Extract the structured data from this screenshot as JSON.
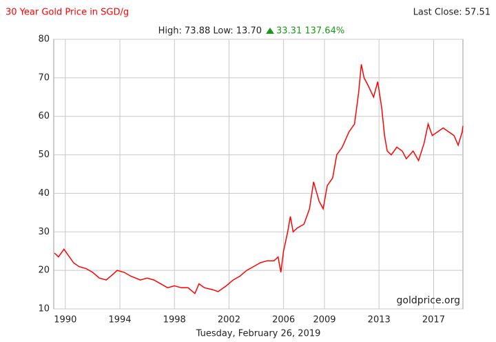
{
  "chart_data": {
    "type": "line",
    "title": "30 Year Gold Price in SGD/g",
    "last_close": "Last Close: 57.51",
    "stats": "High: 73.88 Low: 13.70",
    "change": "33.31 137.64%",
    "watermark": "goldprice.org",
    "xlabel": "Tuesday, February 26, 2019",
    "xlim": [
      1989.15,
      2019.15
    ],
    "xticks": [
      1990,
      1994,
      1998,
      2002,
      2006,
      2009,
      2013,
      2017
    ],
    "ylim": [
      10,
      80
    ],
    "yticks": [
      10,
      20,
      30,
      40,
      50,
      60,
      70,
      80
    ],
    "grid": true,
    "series": [
      {
        "name": "Gold SGD/g",
        "color": "#ff0000",
        "x": [
          1989.2,
          1989.5,
          1989.9,
          1990.2,
          1990.6,
          1991,
          1991.5,
          1992,
          1992.5,
          1993,
          1993.5,
          1993.8,
          1994.3,
          1994.8,
          1995.5,
          1996,
          1996.5,
          1997,
          1997.5,
          1998,
          1998.5,
          1999,
          1999.5,
          1999.8,
          2000.2,
          2000.8,
          2001.2,
          2001.8,
          2002.3,
          2002.8,
          2003.3,
          2003.8,
          2004.3,
          2004.8,
          2005.3,
          2005.6,
          2005.8,
          2006,
          2006.3,
          2006.5,
          2006.7,
          2007,
          2007.5,
          2007.9,
          2008.2,
          2008.6,
          2008.9,
          2009.2,
          2009.6,
          2009.9,
          2010.3,
          2010.8,
          2011.2,
          2011.5,
          2011.7,
          2011.9,
          2012.2,
          2012.6,
          2012.9,
          2013.2,
          2013.4,
          2013.6,
          2013.9,
          2014.3,
          2014.7,
          2015,
          2015.5,
          2015.9,
          2016.3,
          2016.6,
          2016.9,
          2017.3,
          2017.7,
          2018.1,
          2018.5,
          2018.8,
          2019.1,
          2019.15
        ],
        "values": [
          24.5,
          23.5,
          25.5,
          24,
          22,
          21,
          20.5,
          19.5,
          18,
          17.5,
          19,
          20,
          19.5,
          18.5,
          17.5,
          18,
          17.5,
          16.5,
          15.5,
          16,
          15.5,
          15.5,
          14,
          16.5,
          15.5,
          15,
          14.5,
          16,
          17.5,
          18.5,
          20,
          21,
          22,
          22.5,
          22.5,
          23.5,
          19.5,
          25,
          30,
          34,
          30,
          31,
          32,
          36,
          43,
          38,
          36,
          42,
          44,
          50,
          52,
          56,
          58,
          66,
          73.5,
          70,
          68,
          65,
          69,
          62,
          55,
          51,
          50,
          52,
          51,
          49,
          51,
          48.5,
          53,
          58,
          55,
          56,
          57,
          56,
          55,
          52.5,
          56,
          57.5
        ]
      }
    ]
  }
}
